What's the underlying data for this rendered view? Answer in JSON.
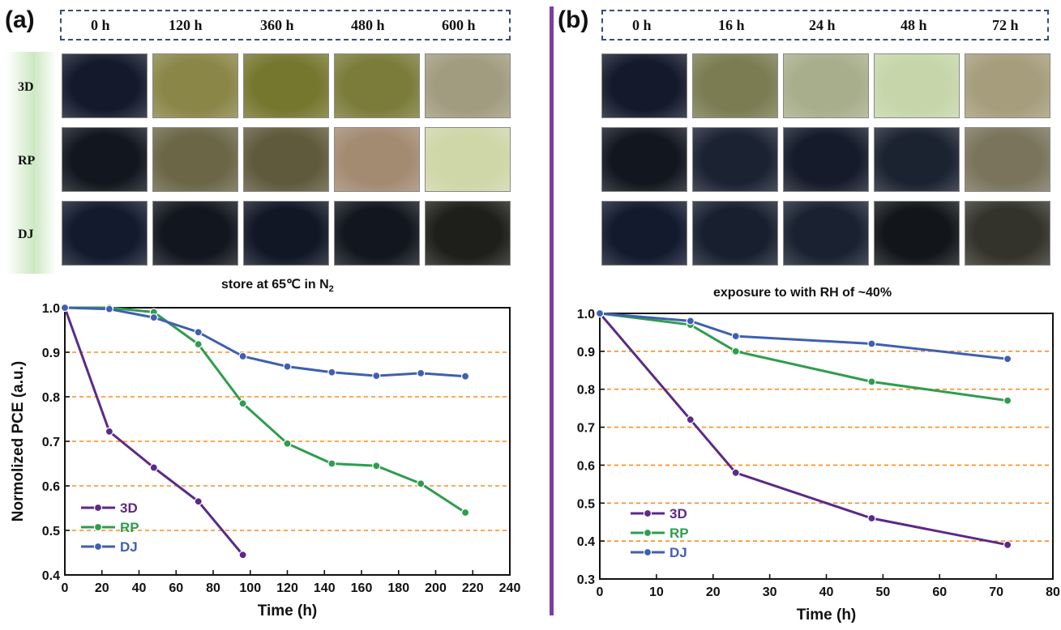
{
  "panels": [
    {
      "label": "(a)",
      "times": [
        "0 h",
        "120 h",
        "360 h",
        "480 h",
        "600 h"
      ],
      "rows": [
        "3D",
        "RP",
        "DJ"
      ],
      "caption_main": "store at 65℃ in N",
      "caption_sub": "2",
      "photo_colors": [
        [
          "#141a2c",
          "#8a8648",
          "#76772f",
          "#7b7c3a",
          "#a19c80"
        ],
        [
          "#12161f",
          "#6b6646",
          "#5f5a3c",
          "#a38b72",
          "#cfd6a8"
        ],
        [
          "#131a2e",
          "#12161e",
          "#111725",
          "#12171f",
          "#1e1e1a"
        ]
      ]
    },
    {
      "label": "(b)",
      "times": [
        "0 h",
        "16 h",
        "24 h",
        "48 h",
        "72 h"
      ],
      "rows": [
        "3D",
        "RP",
        "DJ"
      ],
      "caption_main": "exposure to with RH of ~40%",
      "caption_sub": "",
      "photo_colors": [
        [
          "#141a2c",
          "#7b7c52",
          "#a8ae8c",
          "#c6d6aa",
          "#a69d7c"
        ],
        [
          "#12161f",
          "#1b2232",
          "#151b2a",
          "#1b2230",
          "#7a745c"
        ],
        [
          "#131a2e",
          "#18202f",
          "#1a2231",
          "#121519",
          "#34332b"
        ]
      ]
    }
  ],
  "chart_data": [
    {
      "type": "line",
      "title": "",
      "xlabel": "Time (h)",
      "ylabel": "Normolized PCE (a.u.)",
      "xlim": [
        0,
        240
      ],
      "ylim": [
        0.4,
        1.0
      ],
      "xticks": [
        0,
        20,
        40,
        60,
        80,
        100,
        120,
        140,
        160,
        180,
        200,
        220,
        240
      ],
      "yticks": [
        0.4,
        0.5,
        0.6,
        0.7,
        0.8,
        0.9,
        1.0
      ],
      "ytick_labels": [
        "0.4",
        "0.5",
        "0.6",
        "0.7",
        "0.8",
        "0.9",
        "1.0"
      ],
      "grid": "horizontal dashed orange",
      "legend": "bottom-left",
      "series": [
        {
          "name": "3D",
          "color": "#5b2a86",
          "x": [
            0,
            24,
            48,
            72,
            96
          ],
          "y": [
            1.0,
            0.722,
            0.641,
            0.565,
            0.445
          ]
        },
        {
          "name": "RP",
          "color": "#2e9d4e",
          "x": [
            0,
            24,
            48,
            72,
            96,
            120,
            144,
            168,
            192,
            216
          ],
          "y": [
            1.0,
            1.0,
            0.99,
            0.918,
            0.785,
            0.695,
            0.65,
            0.645,
            0.605,
            0.54
          ]
        },
        {
          "name": "DJ",
          "color": "#3f5fb0",
          "x": [
            0,
            24,
            48,
            72,
            96,
            120,
            144,
            168,
            192,
            216
          ],
          "y": [
            1.0,
            0.997,
            0.978,
            0.945,
            0.891,
            0.868,
            0.855,
            0.847,
            0.853,
            0.846
          ]
        }
      ]
    },
    {
      "type": "line",
      "title": "",
      "xlabel": "Time (h)",
      "ylabel": "",
      "xlim": [
        0,
        80
      ],
      "ylim": [
        0.3,
        1.0
      ],
      "xticks": [
        0,
        10,
        20,
        30,
        40,
        50,
        60,
        70,
        80
      ],
      "yticks": [
        0.3,
        0.4,
        0.5,
        0.6,
        0.7,
        0.8,
        0.9,
        1.0
      ],
      "ytick_labels": [
        "0.3",
        "0.4",
        "0.5",
        "0.6",
        "0.7",
        "0.8",
        "0.9",
        "1.0"
      ],
      "grid": "horizontal dashed orange",
      "legend": "bottom-left",
      "series": [
        {
          "name": "3D",
          "color": "#5b2a86",
          "x": [
            0,
            16,
            24,
            48,
            72
          ],
          "y": [
            1.0,
            0.72,
            0.58,
            0.46,
            0.39
          ]
        },
        {
          "name": "RP",
          "color": "#2e9d4e",
          "x": [
            0,
            16,
            24,
            48,
            72
          ],
          "y": [
            1.0,
            0.97,
            0.9,
            0.82,
            0.77
          ]
        },
        {
          "name": "DJ",
          "color": "#3f5fb0",
          "x": [
            0,
            16,
            24,
            48,
            72
          ],
          "y": [
            1.0,
            0.98,
            0.94,
            0.92,
            0.88
          ]
        }
      ]
    }
  ]
}
